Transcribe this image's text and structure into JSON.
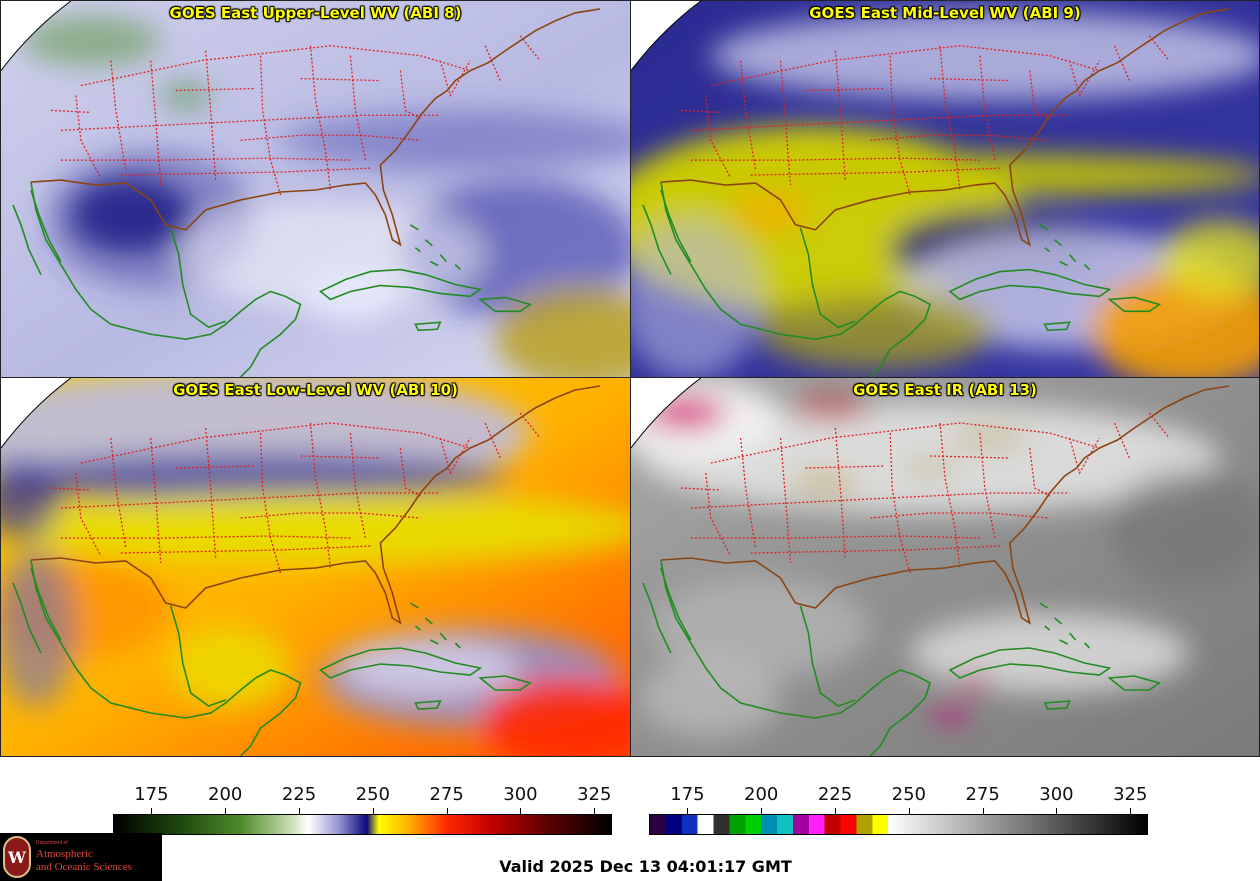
{
  "panels": [
    {
      "title": "GOES East Upper-Level WV (ABI 8)",
      "scheme": "upper"
    },
    {
      "title": "GOES East Mid-Level WV (ABI 9)",
      "scheme": "mid"
    },
    {
      "title": "GOES East Low-Level WV (ABI 10)",
      "scheme": "low"
    },
    {
      "title": "GOES East IR (ABI 13)",
      "scheme": "ir"
    }
  ],
  "colorbars": {
    "wv": {
      "ticks": [
        "175",
        "200",
        "225",
        "250",
        "275",
        "300",
        "325"
      ],
      "range": [
        162,
        331
      ],
      "stops": [
        {
          "v": 162,
          "c": "#000000"
        },
        {
          "v": 185,
          "c": "#1f4a10"
        },
        {
          "v": 205,
          "c": "#4d8a2a"
        },
        {
          "v": 222,
          "c": "#c8ddb0"
        },
        {
          "v": 228,
          "c": "#ffffff"
        },
        {
          "v": 238,
          "c": "#9a9ad6"
        },
        {
          "v": 248,
          "c": "#0a0a7a"
        },
        {
          "v": 252,
          "c": "#ffff00"
        },
        {
          "v": 262,
          "c": "#ffb000"
        },
        {
          "v": 275,
          "c": "#ff2a00"
        },
        {
          "v": 290,
          "c": "#c40000"
        },
        {
          "v": 310,
          "c": "#5a0000"
        },
        {
          "v": 331,
          "c": "#000000"
        }
      ]
    },
    "ir": {
      "ticks": [
        "175",
        "200",
        "225",
        "250",
        "275",
        "300",
        "325"
      ],
      "range": [
        162,
        331
      ],
      "bands": [
        "#2a0040",
        "#000080",
        "#1030c0",
        "#ffffff",
        "#303030",
        "#00a000",
        "#00d000",
        "#0090b0",
        "#10c0c0",
        "#a000a0",
        "#ff20ff",
        "#c00000",
        "#ff0000",
        "#b0a000",
        "#ffff00"
      ],
      "gray_from": 243
    }
  },
  "logo": {
    "dept": "Department of",
    "line1": "Atmospheric",
    "line2": "and Oceanic Sciences",
    "seal": "W"
  },
  "valid_time": "Valid 2025 Dec 13 04:01:17 GMT",
  "colors": {
    "state_lines": "#e02020",
    "coast_land": "#228b22",
    "coast_us": "#8b4513"
  }
}
